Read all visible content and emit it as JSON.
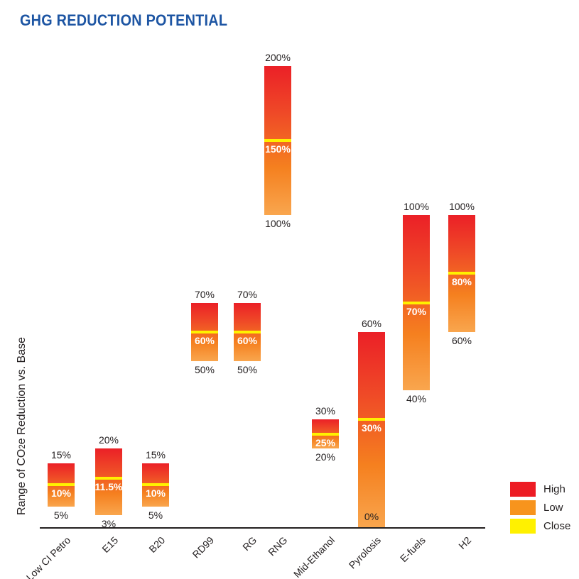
{
  "title": "GHG REDUCTION POTENTIAL",
  "y_axis_label": "Range of CO2e Reduction vs. Base",
  "legend": {
    "items": [
      {
        "label": "High",
        "color": "#ED1C24"
      },
      {
        "label": "Low",
        "color": "#F7941D"
      },
      {
        "label": "Close",
        "color": "#FFF100"
      }
    ]
  },
  "colors": {
    "title_text": "#1D55A3",
    "body_text": "#231F20",
    "axis_line": "#231F20",
    "close_line": "#FFF100",
    "close_label_text": "#FFFFFF",
    "bar_gradient": [
      "#EB2027",
      "#EF4A27",
      "#F5801F",
      "#F9A64E"
    ]
  },
  "chart_data": {
    "type": "bar",
    "variant": "floating range bars (low to high) with close marker line",
    "title": "GHG REDUCTION POTENTIAL",
    "xlabel": "",
    "ylabel": "Range of CO2e Reduction vs. Base",
    "unit": "%",
    "grid": false,
    "legend_position": "bottom-right",
    "y_axis_ticks_shown": false,
    "categories": [
      "Low CI Petro",
      "E15",
      "B20",
      "RD99",
      "RG",
      "RNG",
      "Mid-Ethanol",
      "Pyrolosis",
      "E-fuels",
      "H2"
    ],
    "series": [
      {
        "name": "Low",
        "values": [
          5,
          3,
          5,
          50,
          50,
          100,
          20,
          0,
          40,
          60
        ]
      },
      {
        "name": "High",
        "values": [
          15,
          20,
          15,
          70,
          70,
          200,
          30,
          60,
          100,
          100
        ]
      },
      {
        "name": "Close",
        "values": [
          10,
          11.5,
          10,
          60,
          60,
          150,
          25,
          30,
          70,
          80
        ]
      }
    ],
    "bars": [
      {
        "category": "Low CI Petro",
        "low": 5,
        "high": 15,
        "close": 10,
        "low_label": "5%",
        "high_label": "15%",
        "close_label": "10%"
      },
      {
        "category": "E15",
        "low": 3,
        "high": 20,
        "close": 11.5,
        "low_label": "3%",
        "high_label": "20%",
        "close_label": "11.5%"
      },
      {
        "category": "B20",
        "low": 5,
        "high": 15,
        "close": 10,
        "low_label": "5%",
        "high_label": "15%",
        "close_label": "10%"
      },
      {
        "category": "RD99",
        "low": 50,
        "high": 70,
        "close": 60,
        "low_label": "50%",
        "high_label": "70%",
        "close_label": "60%"
      },
      {
        "category": "RG",
        "low": 50,
        "high": 70,
        "close": 60,
        "low_label": "50%",
        "high_label": "70%",
        "close_label": "60%"
      },
      {
        "category": "RNG",
        "low": 100,
        "high": 200,
        "close": 150,
        "low_label": "100%",
        "high_label": "200%",
        "close_label": "150%"
      },
      {
        "category": "Mid-Ethanol",
        "low": 20,
        "high": 30,
        "close": 25,
        "low_label": "20%",
        "high_label": "30%",
        "close_label": "25%"
      },
      {
        "category": "Pyrolosis",
        "low": 0,
        "high": 60,
        "close": 30,
        "low_label": "0%",
        "high_label": "60%",
        "close_label": "30%"
      },
      {
        "category": "E-fuels",
        "low": 40,
        "high": 100,
        "close": 70,
        "low_label": "40%",
        "high_label": "100%",
        "close_label": "70%"
      },
      {
        "category": "H2",
        "low": 60,
        "high": 100,
        "close": 80,
        "low_label": "60%",
        "high_label": "100%",
        "close_label": "80%"
      }
    ]
  }
}
